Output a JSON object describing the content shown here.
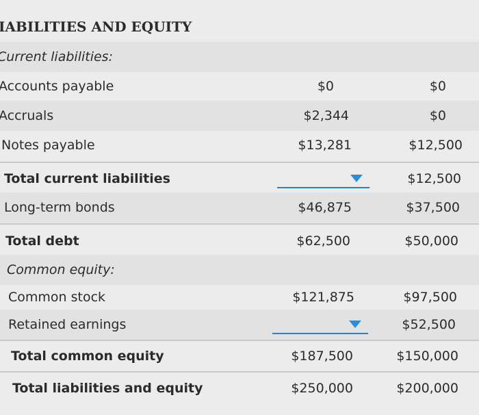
{
  "section_title": "IABILITIES AND EQUITY",
  "current_liabilities_header": "Current liabilities:",
  "rows": {
    "accounts_payable": {
      "label": "Accounts payable",
      "col1": "$0",
      "col2": "$0"
    },
    "accruals": {
      "label": "Accruals",
      "col1": "$2,344",
      "col2": "$0"
    },
    "notes_payable": {
      "label": "Notes payable",
      "col1": "$13,281",
      "col2": "$12,500"
    },
    "total_current_liabilities": {
      "label": "Total current liabilities",
      "col1": "",
      "col2": "$12,500"
    },
    "long_term_bonds": {
      "label": "Long-term bonds",
      "col1": "$46,875",
      "col2": "$37,500"
    },
    "total_debt": {
      "label": "Total debt",
      "col1": "$62,500",
      "col2": "$50,000"
    },
    "common_stock": {
      "label": "Common stock",
      "col1": "$121,875",
      "col2": "$97,500"
    },
    "retained_earnings": {
      "label": "Retained earnings",
      "col1": "",
      "col2": "$52,500"
    },
    "total_common_equity": {
      "label": "Total common equity",
      "col1": "$187,500",
      "col2": "$150,000"
    },
    "total_liabilities_equity": {
      "label": "Total liabilities and equity",
      "col1": "$250,000",
      "col2": "$200,000"
    }
  },
  "common_equity_header": "Common equity:",
  "colors": {
    "dropdown_accent": "#2d8ed6",
    "background": "#ececec"
  }
}
